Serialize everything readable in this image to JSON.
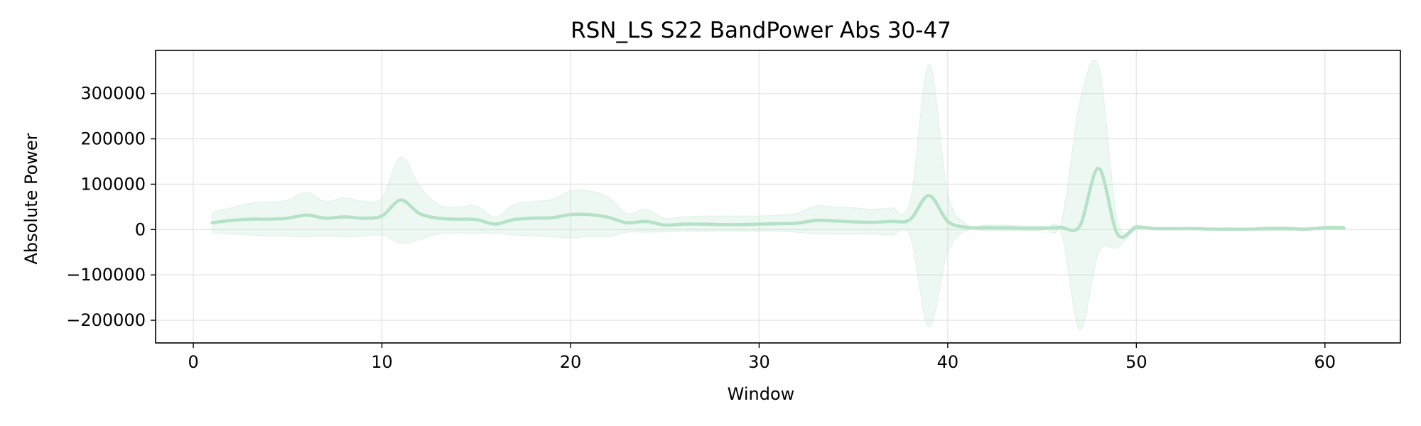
{
  "chart_data": {
    "type": "line",
    "title": "RSN_LS S22 BandPower Abs 30-47",
    "xlabel": "Window",
    "ylabel": "Absolute Power",
    "xlim": [
      -2,
      64
    ],
    "ylim": [
      -250000,
      395000
    ],
    "xticks": [
      0,
      10,
      20,
      30,
      40,
      50,
      60
    ],
    "xtick_labels": [
      "0",
      "10",
      "20",
      "30",
      "40",
      "50",
      "60"
    ],
    "yticks": [
      -200000,
      -100000,
      0,
      100000,
      200000,
      300000
    ],
    "ytick_labels": [
      "−200000",
      "−100000",
      "0",
      "100000",
      "200000",
      "300000"
    ],
    "grid": true,
    "colors": {
      "line": "#b5e2c6",
      "band": "#b5e2c6",
      "band_opacity": 0.25,
      "grid": "#e6e6e6"
    },
    "series": [
      {
        "x": [
          1,
          2,
          3,
          4,
          5,
          6,
          7,
          8,
          9,
          10,
          11,
          12,
          13,
          14,
          15,
          16,
          17,
          18,
          19,
          20,
          21,
          22,
          23,
          24,
          25,
          26,
          27,
          28,
          29,
          30,
          31,
          32,
          33,
          34,
          35,
          36,
          37,
          38,
          39,
          40,
          41,
          42,
          43,
          44,
          45,
          46,
          47,
          48,
          49,
          50,
          51,
          52,
          53,
          54,
          55,
          56,
          57,
          58,
          59,
          60,
          61
        ],
        "y": [
          15000,
          20000,
          23000,
          23000,
          25000,
          32000,
          25000,
          28000,
          25000,
          30000,
          65000,
          35000,
          25000,
          23000,
          22000,
          12000,
          22000,
          25000,
          26000,
          33000,
          33000,
          27000,
          15000,
          18000,
          10000,
          12000,
          12000,
          11000,
          11000,
          12000,
          13000,
          14000,
          20000,
          19000,
          17000,
          16000,
          18000,
          22000,
          75000,
          18000,
          5000,
          4000,
          4000,
          3000,
          3000,
          5000,
          8000,
          135000,
          -10000,
          5000,
          2000,
          2000,
          2000,
          1000,
          1000,
          1000,
          2000,
          2000,
          1000,
          4000,
          4000
        ],
        "upper": [
          38000,
          48000,
          58000,
          60000,
          65000,
          82000,
          62000,
          70000,
          63000,
          70000,
          160000,
          95000,
          55000,
          50000,
          52000,
          28000,
          55000,
          62000,
          66000,
          85000,
          85000,
          72000,
          35000,
          45000,
          25000,
          28000,
          30000,
          30000,
          30000,
          30000,
          32000,
          36000,
          52000,
          50000,
          48000,
          45000,
          48000,
          60000,
          365000,
          80000,
          12000,
          10000,
          10000,
          8000,
          8000,
          14000,
          280000,
          360000,
          20000,
          10000,
          5000,
          5000,
          5000,
          3000,
          3000,
          3000,
          6000,
          6000,
          3000,
          8000,
          8000
        ],
        "lower": [
          -8000,
          -10000,
          -12000,
          -14000,
          -15000,
          -16000,
          -14000,
          -16000,
          -15000,
          -12000,
          -30000,
          -22000,
          -10000,
          -8000,
          -8000,
          -8000,
          -12000,
          -14000,
          -16000,
          -18000,
          -16000,
          -16000,
          -6000,
          -6000,
          -5000,
          -4000,
          -4000,
          -4000,
          -4000,
          -4000,
          -4000,
          -6000,
          -10000,
          -10000,
          -10000,
          -10000,
          -12000,
          -15000,
          -215000,
          -50000,
          -2000,
          -2000,
          -2000,
          -2000,
          -2000,
          -4000,
          -220000,
          -50000,
          -40000,
          0,
          -1000,
          -1000,
          -1000,
          -1000,
          -1000,
          -1000,
          -2000,
          -2000,
          -1000,
          0,
          0
        ]
      }
    ]
  }
}
